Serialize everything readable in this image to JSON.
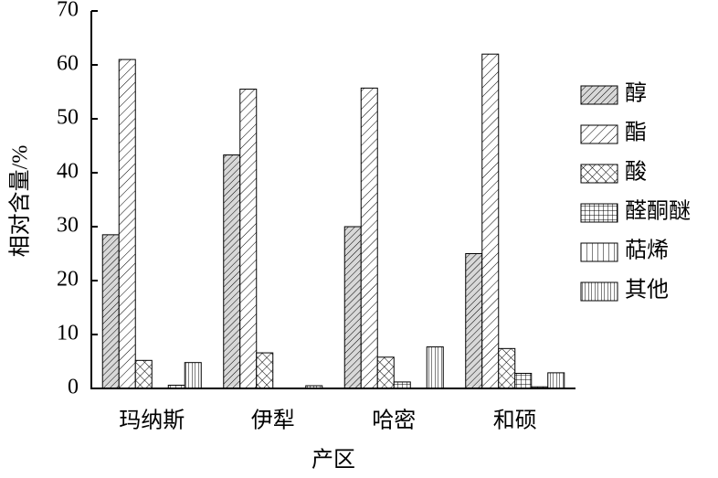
{
  "chart_data": {
    "type": "bar",
    "x_label": "产区",
    "y_label": "相对含量/%",
    "categories": [
      "玛纳斯",
      "伊犁",
      "哈密",
      "和硕"
    ],
    "series": [
      {
        "name": "醇",
        "values": [
          28.5,
          43.3,
          30,
          25
        ]
      },
      {
        "name": "酯",
        "values": [
          61,
          55.5,
          55.7,
          62
        ]
      },
      {
        "name": "酸",
        "values": [
          5.2,
          6.6,
          5.8,
          7.4
        ]
      },
      {
        "name": "醛酮醚",
        "values": [
          0,
          0,
          1.2,
          2.8
        ]
      },
      {
        "name": "萜烯",
        "values": [
          0.6,
          0,
          0,
          0.3
        ]
      },
      {
        "name": "其他",
        "values": [
          4.8,
          0.5,
          7.7,
          2.9
        ]
      }
    ],
    "ylim": [
      0,
      70
    ],
    "yticks": [
      0,
      10,
      20,
      30,
      40,
      50,
      60,
      70
    ],
    "legend": "right"
  }
}
